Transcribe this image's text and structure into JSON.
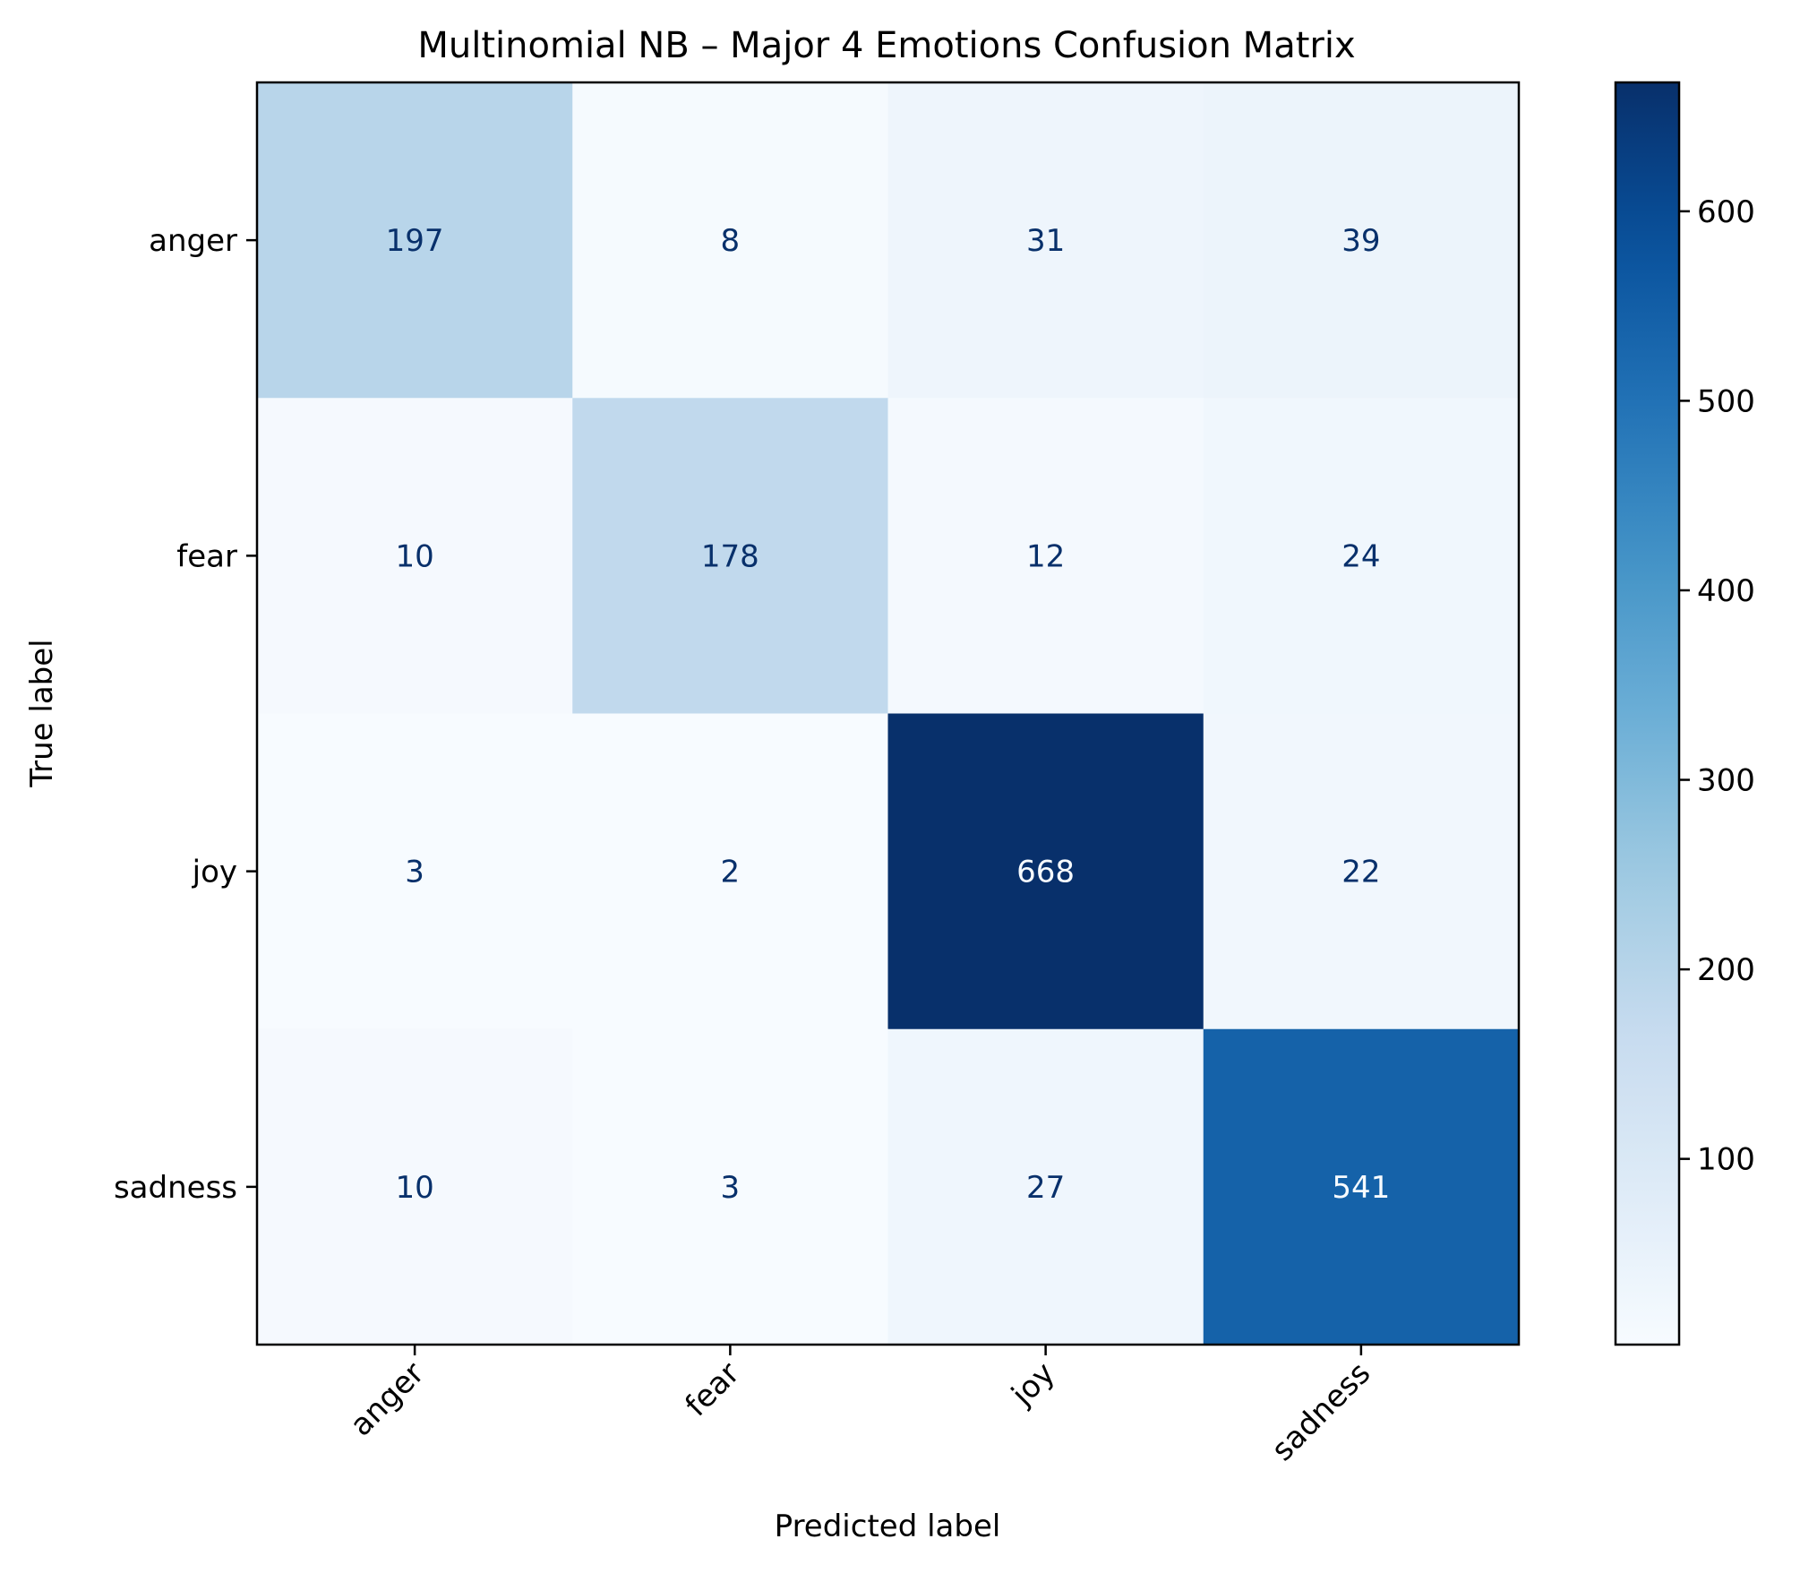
{
  "chart_data": {
    "type": "heatmap",
    "title": "Multinomial NB – Major 4 Emotions Confusion Matrix",
    "xlabel": "Predicted label",
    "ylabel": "True label",
    "x_categories": [
      "anger",
      "fear",
      "joy",
      "sadness"
    ],
    "y_categories": [
      "anger",
      "fear",
      "joy",
      "sadness"
    ],
    "values": [
      [
        197,
        8,
        31,
        39
      ],
      [
        10,
        178,
        12,
        24
      ],
      [
        3,
        2,
        668,
        22
      ],
      [
        10,
        3,
        27,
        541
      ]
    ],
    "colormap": "Blues",
    "colorbar": {
      "min": 2,
      "max": 668,
      "ticks": [
        100,
        200,
        300,
        400,
        500,
        600
      ],
      "tick_labels": [
        "100",
        "200",
        "300",
        "400",
        "500",
        "600"
      ]
    },
    "colors": {
      "cmap_low": "#f7fbff",
      "cmap_high": "#08306b",
      "text_dark": "#08306b",
      "text_light": "#f7fbff"
    }
  }
}
